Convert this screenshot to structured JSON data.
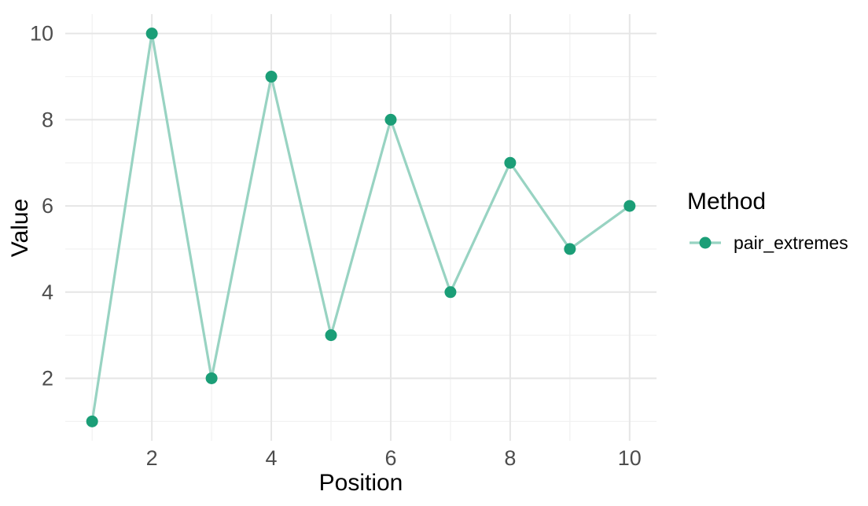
{
  "chart_data": {
    "type": "line",
    "title": "",
    "xlabel": "Position",
    "ylabel": "Value",
    "x": [
      1,
      2,
      3,
      4,
      5,
      6,
      7,
      8,
      9,
      10
    ],
    "series": [
      {
        "name": "pair_extremes",
        "values": [
          1,
          10,
          2,
          9,
          3,
          8,
          4,
          7,
          5,
          6
        ]
      }
    ],
    "xlim": [
      0.55,
      10.45
    ],
    "ylim": [
      0.55,
      10.45
    ],
    "xticks": [
      2,
      4,
      6,
      8,
      10
    ],
    "yticks": [
      2,
      4,
      6,
      8,
      10
    ],
    "xticks_minor": [
      1,
      3,
      5,
      7,
      9
    ],
    "yticks_minor": [
      1,
      3,
      5,
      7,
      9
    ],
    "grid": "on",
    "legend": {
      "title": "Method",
      "position": "right",
      "entries": [
        "pair_extremes"
      ]
    },
    "colors": {
      "point": "#1b9e77",
      "line": "#98d3c2",
      "grid_major": "#e6e6e6",
      "grid_minor": "#f1f1f1",
      "tick_label": "#4d4d4d",
      "axis_title": "#000000",
      "background": "#ffffff"
    }
  }
}
